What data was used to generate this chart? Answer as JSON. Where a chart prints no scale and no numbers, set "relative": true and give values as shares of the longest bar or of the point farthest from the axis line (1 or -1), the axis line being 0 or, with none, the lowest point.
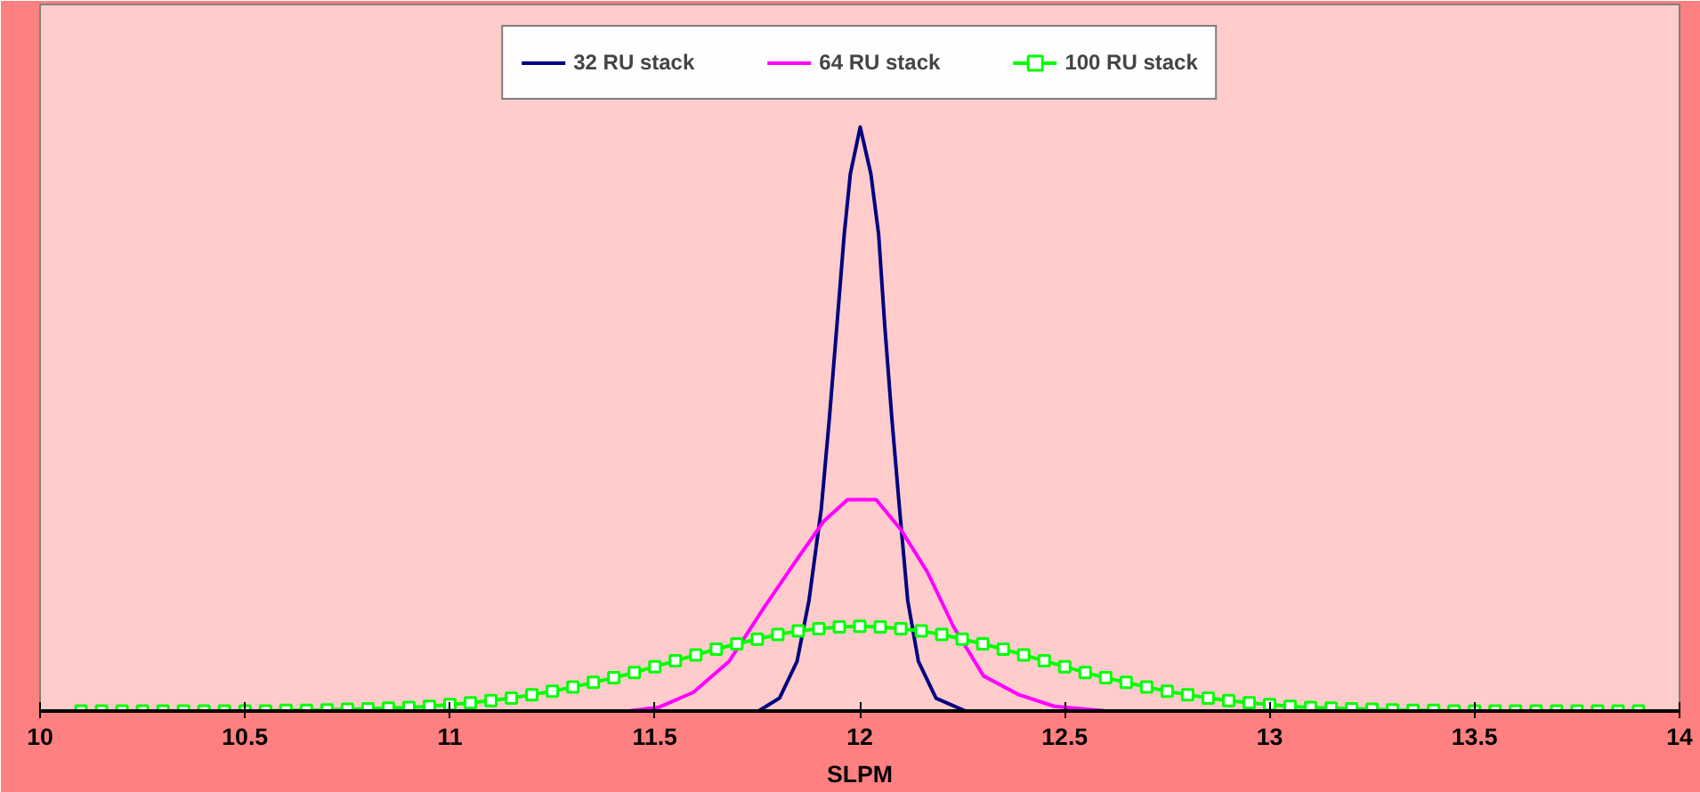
{
  "chart_data": {
    "type": "line",
    "xlabel": "SLPM",
    "relative": true,
    "legend": "top",
    "grid": false,
    "tick_labels": "x",
    "xlim": [
      10,
      14
    ],
    "xticks": [
      10,
      10.5,
      11,
      11.5,
      12,
      12.5,
      13,
      13.5,
      14
    ],
    "series": [
      {
        "name": "32 RU stack",
        "color": "#000080",
        "marker": "none",
        "x": [
          11.74,
          11.753,
          11.804,
          11.847,
          11.876,
          11.906,
          11.926,
          11.944,
          11.962,
          11.977,
          12.001,
          12.027,
          12.046,
          12.061,
          12.078,
          12.097,
          12.117,
          12.143,
          12.186,
          12.258,
          12.28
        ],
        "values": [
          0,
          0,
          0.022,
          0.085,
          0.189,
          0.346,
          0.503,
          0.659,
          0.816,
          0.92,
          1,
          0.92,
          0.816,
          0.659,
          0.503,
          0.346,
          0.189,
          0.085,
          0.022,
          0,
          0
        ]
      },
      {
        "name": "64 RU stack",
        "color": "#ff00ff",
        "marker": "none",
        "x": [
          11.25,
          11.436,
          11.508,
          11.594,
          11.681,
          11.768,
          11.847,
          11.912,
          11.97,
          12.04,
          12.1,
          12.165,
          12.229,
          12.302,
          12.388,
          12.475,
          12.6,
          12.75
        ],
        "values": [
          0,
          0,
          0.006,
          0.032,
          0.085,
          0.179,
          0.26,
          0.325,
          0.362,
          0.362,
          0.311,
          0.238,
          0.144,
          0.06,
          0.028,
          0.008,
          0,
          0
        ]
      },
      {
        "name": "100 RU stack",
        "color": "#00ff00",
        "marker": "square",
        "x": [
          10.1,
          10.15,
          10.2,
          10.25,
          10.3,
          10.35,
          10.4,
          10.45,
          10.5,
          10.55,
          10.6,
          10.65,
          10.7,
          10.75,
          10.8,
          10.85,
          10.9,
          10.95,
          11.0,
          11.05,
          11.1,
          11.15,
          11.2,
          11.25,
          11.3,
          11.35,
          11.4,
          11.45,
          11.5,
          11.55,
          11.6,
          11.65,
          11.7,
          11.75,
          11.8,
          11.85,
          11.9,
          11.95,
          12.0,
          12.05,
          12.1,
          12.15,
          12.2,
          12.25,
          12.3,
          12.35,
          12.4,
          12.45,
          12.5,
          12.55,
          12.6,
          12.65,
          12.7,
          12.75,
          12.8,
          12.85,
          12.9,
          12.95,
          13.0,
          13.05,
          13.1,
          13.15,
          13.2,
          13.25,
          13.3,
          13.35,
          13.4,
          13.45,
          13.5,
          13.55,
          13.6,
          13.65,
          13.7,
          13.75,
          13.8,
          13.85,
          13.9
        ],
        "values": [
          0,
          0,
          0,
          0,
          0,
          0,
          0,
          0,
          0,
          0,
          0.001,
          0.001,
          0.002,
          0.003,
          0.004,
          0.005,
          0.006,
          0.008,
          0.011,
          0.014,
          0.018,
          0.022,
          0.028,
          0.034,
          0.041,
          0.049,
          0.057,
          0.066,
          0.076,
          0.086,
          0.096,
          0.106,
          0.115,
          0.123,
          0.131,
          0.137,
          0.141,
          0.144,
          0.145,
          0.144,
          0.141,
          0.137,
          0.131,
          0.123,
          0.115,
          0.106,
          0.096,
          0.086,
          0.076,
          0.066,
          0.057,
          0.049,
          0.041,
          0.034,
          0.028,
          0.022,
          0.018,
          0.014,
          0.011,
          0.008,
          0.006,
          0.005,
          0.004,
          0.003,
          0.002,
          0.001,
          0.001,
          0,
          0,
          0,
          0,
          0,
          0,
          0,
          0,
          0,
          0
        ]
      }
    ]
  }
}
